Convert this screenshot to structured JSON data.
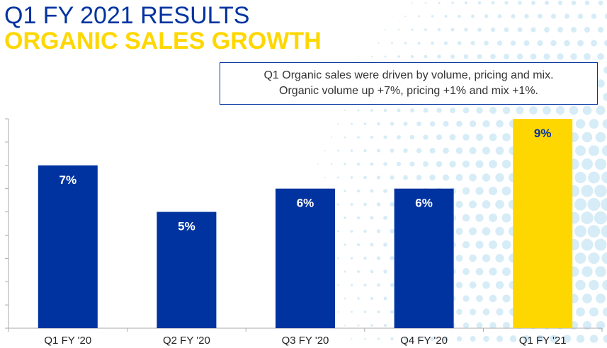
{
  "header": {
    "title": "Q1 FY 2021 RESULTS",
    "subtitle": "ORGANIC SALES GROWTH"
  },
  "callout": {
    "line1": "Q1 Organic sales were driven by volume, pricing and mix.",
    "line2": "Organic volume up +7%, pricing +1% and mix +1%."
  },
  "colors": {
    "title_blue": "#0033a0",
    "title_yellow": "#ffd700",
    "bar_blue": "#0033a0",
    "bar_highlight": "#ffd700",
    "background_dots": "#d6ecf7"
  },
  "chart_data": {
    "type": "bar",
    "categories": [
      "Q1 FY '20",
      "Q2 FY '20",
      "Q3 FY '20",
      "Q4 FY '20",
      "Q1 FY '21"
    ],
    "values": [
      7,
      5,
      6,
      6,
      9
    ],
    "data_labels": [
      "7%",
      "5%",
      "6%",
      "6%",
      "9%"
    ],
    "highlight_index": 4,
    "ylim": [
      0,
      9
    ],
    "y_tick_step": 1,
    "y_tick_labels_shown": false,
    "grid": false,
    "title": "",
    "xlabel": "",
    "ylabel": ""
  }
}
